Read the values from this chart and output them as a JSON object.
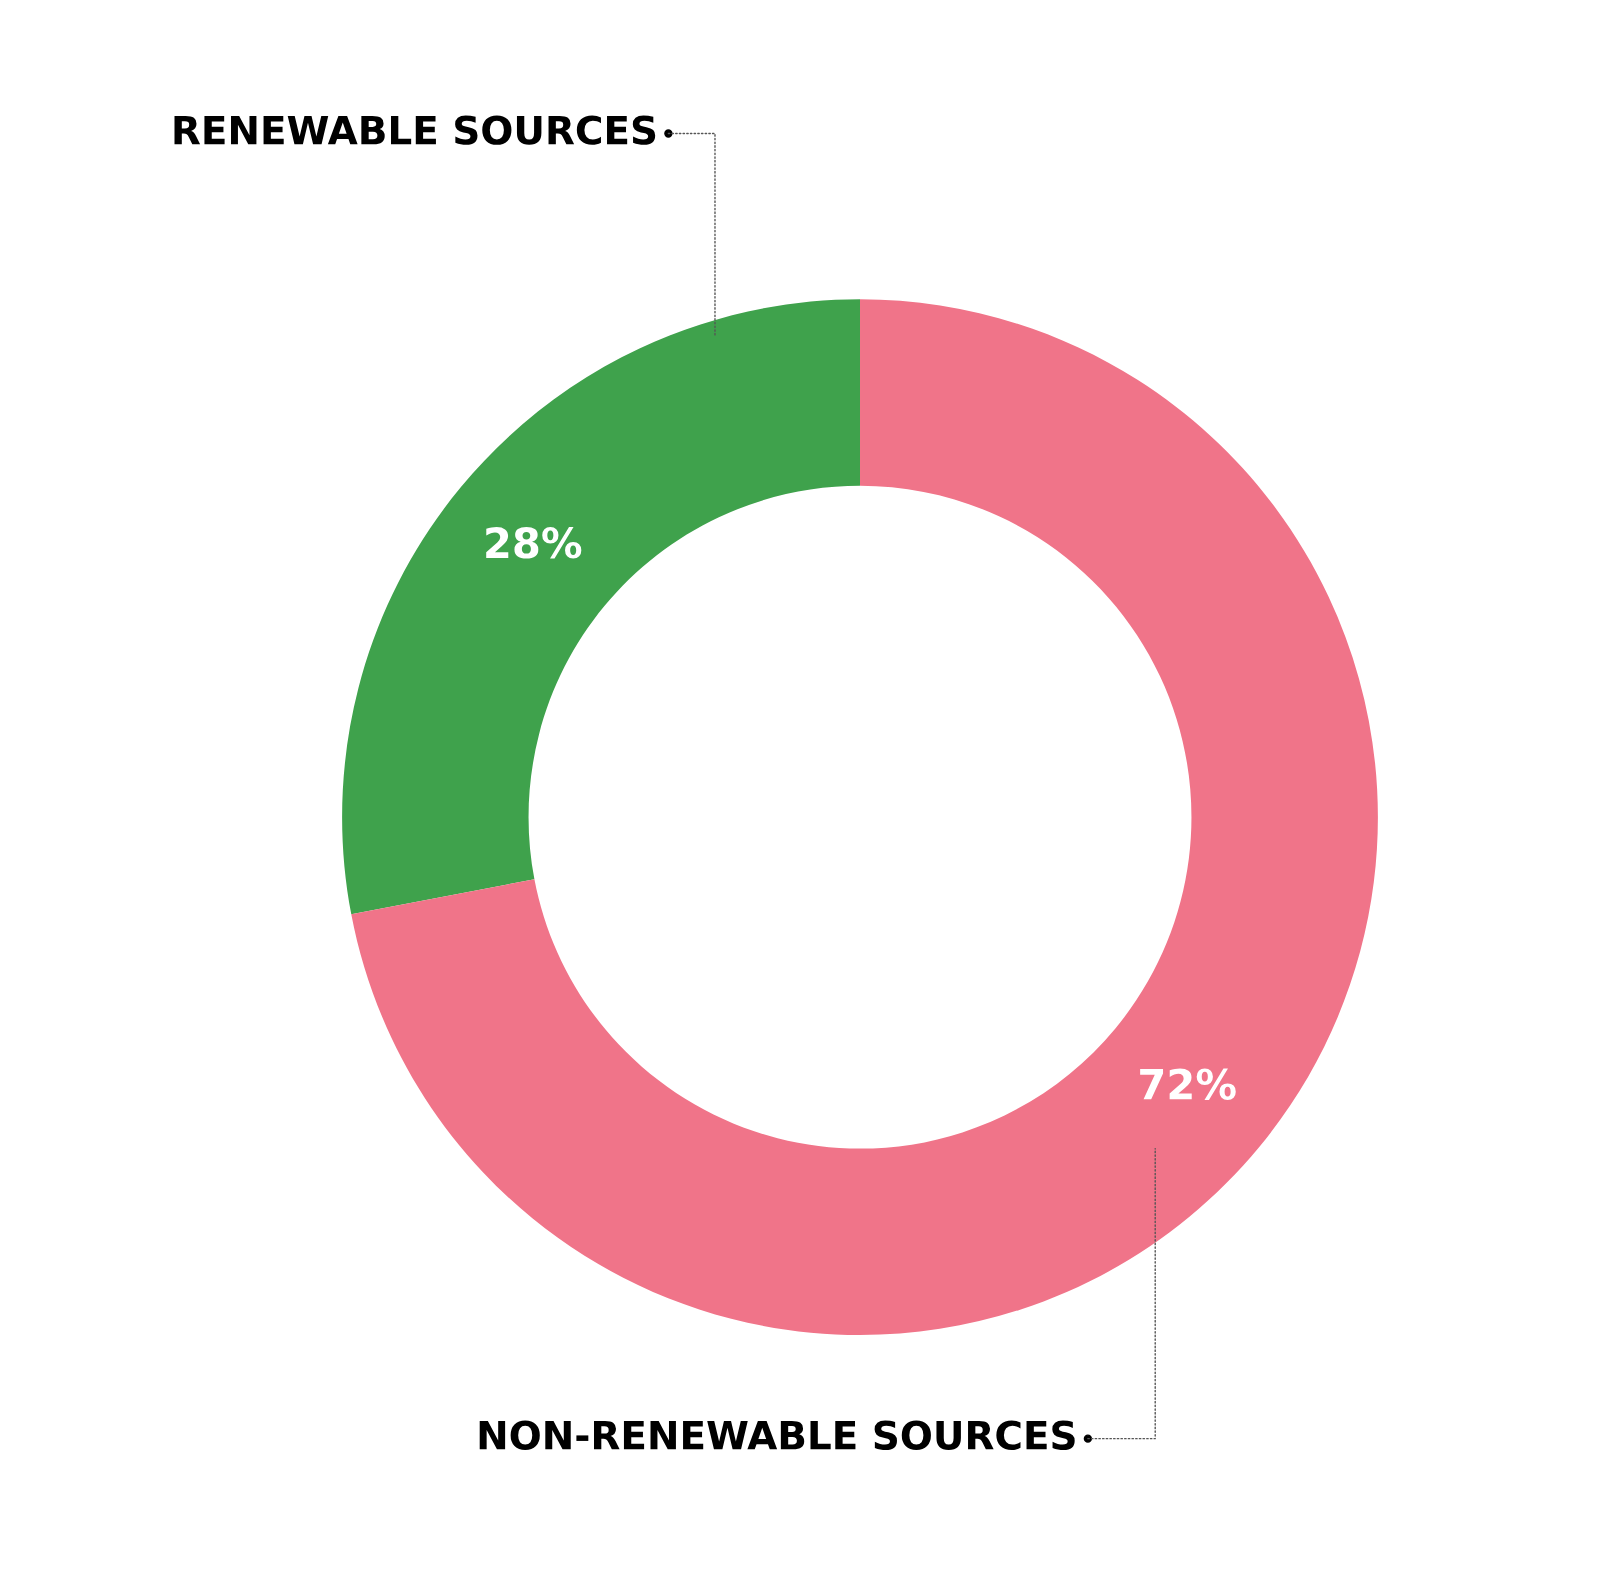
{
  "chart_data": {
    "type": "donut",
    "categories": [
      "RENEWABLE SOURCES",
      "NON-RENEWABLE SOURCES"
    ],
    "values": [
      28,
      72
    ],
    "colors": [
      "#3fa24c",
      "#f07489"
    ],
    "value_labels": [
      "28%",
      "72%"
    ]
  }
}
